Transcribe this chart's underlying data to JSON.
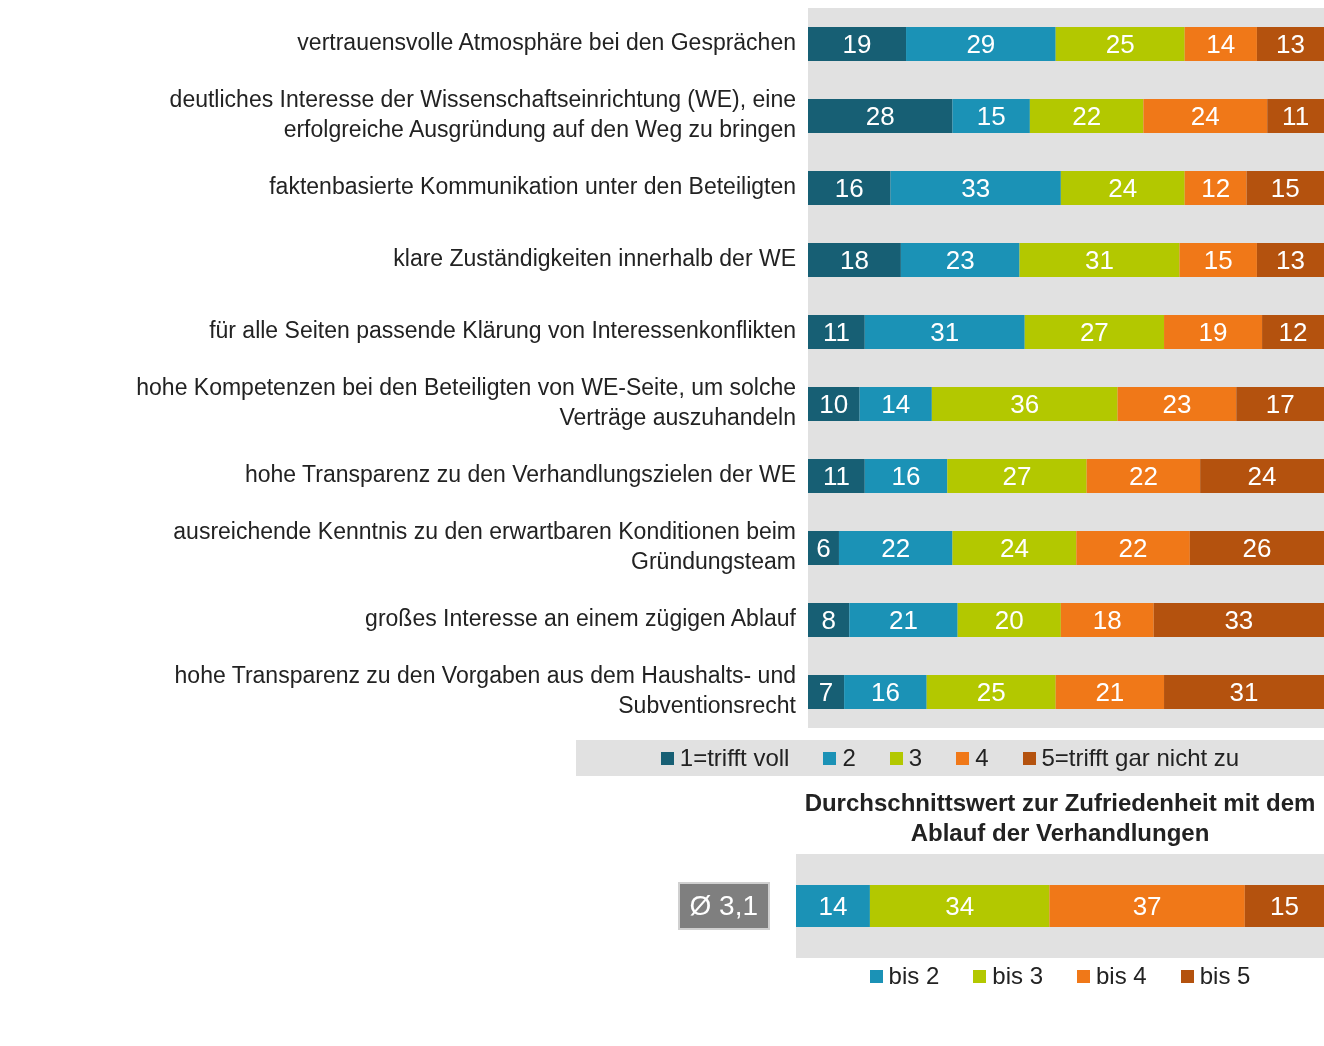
{
  "chart_data": [
    {
      "type": "bar",
      "orientation": "horizontal",
      "stacked": true,
      "data_labels": true,
      "tick_labels": "y",
      "legend": "bottom",
      "xlim": [
        0,
        100
      ],
      "categories": [
        "vertrauensvolle Atmosphäre bei den Gesprächen",
        "deutliches Interesse der Wissenschaftseinrichtung (WE), eine erfolgreiche Ausgründung auf den Weg zu bringen",
        "faktenbasierte Kommunikation unter den Beteiligten",
        "klare Zuständigkeiten innerhalb der WE",
        "für alle Seiten passende Klärung von Interessenkonflikten",
        "hohe Kompetenzen bei den Beteiligten von WE-Seite, um solche Verträge auszuhandeln",
        "hohe Transparenz zu den Verhandlungszielen der WE",
        "ausreichende Kenntnis zu den erwartbaren Konditionen beim Gründungsteam",
        "großes Interesse an einem zügigen Ablauf",
        "hohe Transparenz zu den Vorgaben aus dem Haushalts- und Subventionsrecht"
      ],
      "series": [
        {
          "name": "1=trifft voll",
          "color": "#175f74",
          "values": [
            19,
            28,
            16,
            18,
            11,
            10,
            11,
            6,
            8,
            7
          ]
        },
        {
          "name": "2",
          "color": "#1b92b6",
          "values": [
            29,
            15,
            33,
            23,
            31,
            14,
            16,
            22,
            21,
            16
          ]
        },
        {
          "name": "3",
          "color": "#b3c800",
          "values": [
            25,
            22,
            24,
            31,
            27,
            36,
            27,
            24,
            20,
            25
          ]
        },
        {
          "name": "4",
          "color": "#f07818",
          "values": [
            14,
            24,
            12,
            15,
            19,
            23,
            22,
            22,
            18,
            21
          ]
        },
        {
          "name": "5=trifft gar nicht zu",
          "color": "#b4520e",
          "values": [
            13,
            11,
            15,
            13,
            12,
            17,
            24,
            26,
            33,
            31
          ]
        }
      ]
    },
    {
      "type": "bar",
      "orientation": "horizontal",
      "stacked": true,
      "data_labels": true,
      "tick_labels": false,
      "legend": "bottom",
      "xlim": [
        0,
        100
      ],
      "title": "Durchschnittswert zur Zufriedenheit mit dem Ablauf der Verhandlungen",
      "annotations": [
        "Ø 3,1"
      ],
      "categories": [
        null
      ],
      "series": [
        {
          "name": "bis 2",
          "color": "#1b92b6",
          "values": [
            14
          ]
        },
        {
          "name": "bis 3",
          "color": "#b3c800",
          "values": [
            34
          ]
        },
        {
          "name": "bis 4",
          "color": "#f07818",
          "values": [
            37
          ]
        },
        {
          "name": "bis 5",
          "color": "#b4520e",
          "values": [
            15
          ]
        }
      ]
    }
  ]
}
